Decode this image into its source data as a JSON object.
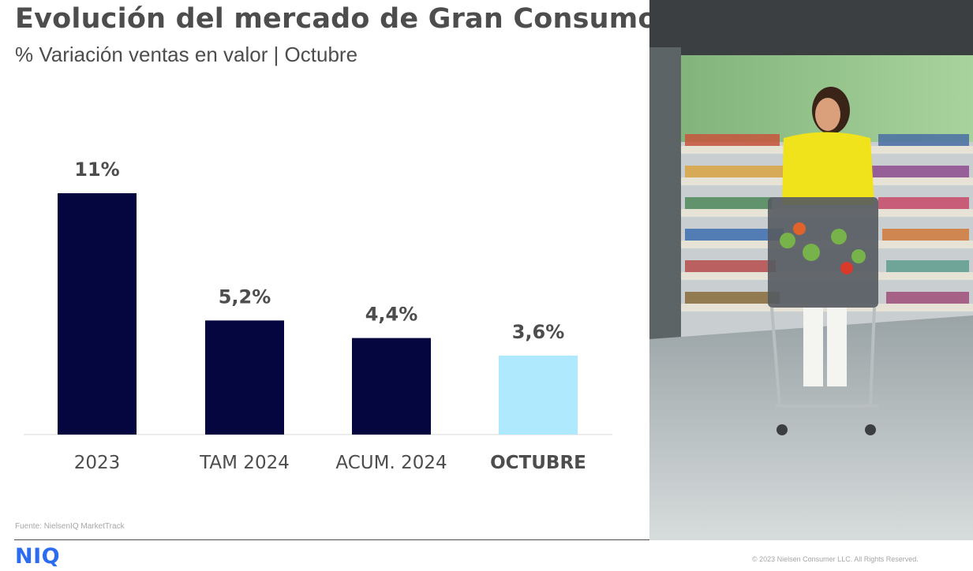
{
  "title": "Evolución del mercado de Gran Consumo",
  "subtitle": "% Variación ventas en valor | Octubre",
  "source": "Fuente: NielsenIQ MarketTrack",
  "logo": "NIQ",
  "copyright": "© 2023 Nielsen Consumer LLC. All Rights Reserved.",
  "colors": {
    "primary_bar": "#05063f",
    "highlight_bar": "#aee9fd",
    "text": "#4d4d4d",
    "logo": "#2b6cf0"
  },
  "chart_data": {
    "type": "bar",
    "categories": [
      "2023",
      "TAM 2024",
      "ACUM. 2024",
      "OCTUBRE"
    ],
    "values": [
      11,
      5.2,
      4.4,
      3.6
    ],
    "data_labels": [
      "11%",
      "5,2%",
      "4,4%",
      "3,6%"
    ],
    "highlight_index": 3,
    "ylim": [
      0,
      11
    ],
    "grid": false,
    "legend": "none"
  }
}
